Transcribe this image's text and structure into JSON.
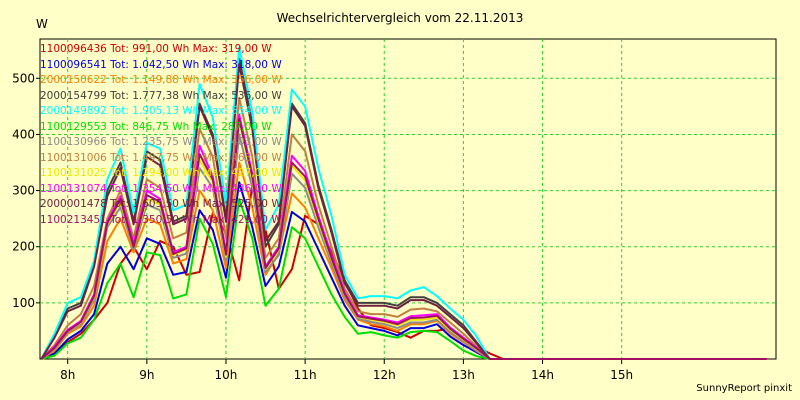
{
  "chart_data": {
    "type": "line",
    "title": "Wechselrichtervergleich vom 22.11.2013",
    "ylabel": "W",
    "footer": "SunnyReport pinxit",
    "xlim": [
      7.65,
      16.95
    ],
    "ylim": [
      0,
      570
    ],
    "x_ticks": [
      {
        "x": 8,
        "label": "8h"
      },
      {
        "x": 9,
        "label": "9h"
      },
      {
        "x": 10,
        "label": "10h"
      },
      {
        "x": 11,
        "label": "11h"
      },
      {
        "x": 12,
        "label": "12h"
      },
      {
        "x": 13,
        "label": "13h"
      },
      {
        "x": 14,
        "label": "14h"
      },
      {
        "x": 15,
        "label": "15h"
      }
    ],
    "y_ticks": [
      100,
      200,
      300,
      400,
      500
    ],
    "grid": true,
    "x": [
      7.667,
      7.833,
      8.0,
      8.167,
      8.333,
      8.5,
      8.667,
      8.833,
      9.0,
      9.167,
      9.333,
      9.5,
      9.667,
      9.833,
      10.0,
      10.167,
      10.333,
      10.5,
      10.667,
      10.833,
      11.0,
      11.167,
      11.333,
      11.5,
      11.667,
      11.833,
      12.0,
      12.167,
      12.333,
      12.5,
      12.667,
      12.833,
      13.0,
      13.167,
      13.333,
      13.5,
      13.667,
      13.833,
      14.0,
      14.167,
      14.333,
      14.5,
      14.667,
      14.833,
      15.0,
      15.167,
      15.333,
      15.5,
      15.667,
      15.833,
      16.0,
      16.167,
      16.333,
      16.5,
      16.667,
      16.833
    ],
    "series": [
      {
        "name": "1100096436",
        "tot": "991,00",
        "max": "319,00",
        "color": "#CC0000",
        "values": [
          0,
          8,
          30,
          45,
          70,
          100,
          170,
          200,
          160,
          210,
          200,
          150,
          155,
          260,
          225,
          140,
          310,
          230,
          125,
          160,
          255,
          240,
          190,
          140,
          90,
          60,
          55,
          48,
          38,
          50,
          50,
          55,
          35,
          22,
          10,
          0,
          0,
          0,
          0,
          0,
          0,
          0,
          0,
          0,
          0,
          0,
          0,
          0,
          0,
          0,
          0,
          0,
          0,
          0,
          0,
          0
        ]
      },
      {
        "name": "1100096541",
        "tot": "1.042,50",
        "max": "318,00",
        "color": "#0000DD",
        "values": [
          0,
          10,
          35,
          50,
          80,
          170,
          200,
          160,
          215,
          205,
          150,
          155,
          265,
          230,
          145,
          315,
          235,
          130,
          165,
          262,
          245,
          195,
          145,
          95,
          60,
          55,
          50,
          42,
          55,
          55,
          62,
          40,
          25,
          12,
          0,
          0,
          0,
          0,
          0,
          0,
          0,
          0,
          0,
          0,
          0,
          0,
          0,
          0,
          0,
          0,
          0,
          0,
          0,
          0,
          0,
          0
        ]
      },
      {
        "name": "2000150622",
        "tot": "1.149,88",
        "max": "356,00",
        "color": "#FF8000",
        "values": [
          0,
          15,
          45,
          58,
          95,
          210,
          250,
          190,
          250,
          240,
          170,
          178,
          300,
          265,
          162,
          350,
          270,
          150,
          188,
          295,
          270,
          215,
          162,
          105,
          70,
          62,
          58,
          50,
          62,
          62,
          68,
          45,
          30,
          14,
          0,
          0,
          0,
          0,
          0,
          0,
          0,
          0,
          0,
          0,
          0,
          0,
          0,
          0,
          0,
          0,
          0,
          0,
          0,
          0,
          0,
          0
        ]
      },
      {
        "name": "2000154799",
        "tot": "1.777,38",
        "max": "536,00",
        "color": "#404040",
        "values": [
          0,
          40,
          90,
          100,
          170,
          300,
          350,
          245,
          370,
          355,
          245,
          255,
          455,
          400,
          250,
          535,
          420,
          200,
          240,
          455,
          420,
          310,
          230,
          140,
          100,
          100,
          100,
          95,
          110,
          110,
          100,
          80,
          60,
          30,
          0,
          0,
          0,
          0,
          0,
          0,
          0,
          0,
          0,
          0,
          0,
          0,
          0,
          0,
          0,
          0,
          0,
          0,
          0,
          0,
          0,
          0
        ]
      },
      {
        "name": "2000149892",
        "tot": "1.905,13",
        "max": "554,00",
        "color": "#00FFFF",
        "values": [
          0,
          45,
          100,
          110,
          175,
          320,
          375,
          260,
          385,
          375,
          265,
          275,
          490,
          430,
          275,
          555,
          440,
          230,
          275,
          480,
          450,
          340,
          255,
          150,
          108,
          112,
          112,
          108,
          122,
          128,
          112,
          90,
          70,
          40,
          0,
          0,
          0,
          0,
          0,
          0,
          0,
          0,
          0,
          0,
          0,
          0,
          0,
          0,
          0,
          0,
          0,
          0,
          0,
          0,
          0,
          0
        ]
      },
      {
        "name": "1100129553",
        "tot": "846,75",
        "max": "287,00",
        "color": "#00DD00",
        "values": [
          0,
          6,
          28,
          38,
          70,
          135,
          170,
          110,
          190,
          185,
          108,
          115,
          250,
          205,
          110,
          285,
          215,
          95,
          125,
          235,
          215,
          165,
          115,
          75,
          45,
          48,
          42,
          38,
          48,
          50,
          48,
          32,
          15,
          5,
          0,
          0,
          0,
          0,
          0,
          0,
          0,
          0,
          0,
          0,
          0,
          0,
          0,
          0,
          0,
          0,
          0,
          0,
          0,
          0,
          0,
          0
        ]
      },
      {
        "name": "1100130966",
        "tot": "1.235,75",
        "max": "403,00",
        "color": "#8C8C8C",
        "values": [
          0,
          18,
          48,
          62,
          105,
          235,
          270,
          195,
          275,
          265,
          180,
          188,
          340,
          305,
          175,
          400,
          305,
          155,
          185,
          330,
          305,
          235,
          170,
          110,
          72,
          66,
          62,
          55,
          65,
          65,
          70,
          48,
          32,
          15,
          0,
          0,
          0,
          0,
          0,
          0,
          0,
          0,
          0,
          0,
          0,
          0,
          0,
          0,
          0,
          0,
          0,
          0,
          0,
          0,
          0,
          0
        ]
      },
      {
        "name": "1100131006",
        "tot": "1.497,75",
        "max": "463,00",
        "color": "#C08040",
        "values": [
          0,
          25,
          60,
          80,
          130,
          250,
          300,
          215,
          320,
          305,
          215,
          225,
          410,
          360,
          215,
          465,
          360,
          180,
          215,
          400,
          370,
          275,
          200,
          125,
          85,
          80,
          80,
          75,
          88,
          90,
          85,
          65,
          45,
          22,
          0,
          0,
          0,
          0,
          0,
          0,
          0,
          0,
          0,
          0,
          0,
          0,
          0,
          0,
          0,
          0,
          0,
          0,
          0,
          0,
          0,
          0
        ]
      },
      {
        "name": "1100131025",
        "tot": "1.294,00",
        "max": "427,00",
        "color": "#E8E800",
        "values": [
          0,
          20,
          50,
          65,
          110,
          240,
          280,
          200,
          285,
          275,
          185,
          195,
          355,
          315,
          182,
          425,
          320,
          160,
          195,
          345,
          318,
          245,
          178,
          115,
          75,
          70,
          66,
          60,
          70,
          70,
          74,
          52,
          35,
          18,
          0,
          0,
          0,
          0,
          0,
          0,
          0,
          0,
          0,
          0,
          0,
          0,
          0,
          0,
          0,
          0,
          0,
          0,
          0,
          0,
          0,
          0
        ]
      },
      {
        "name": "1100131074",
        "tot": "1.354,50",
        "max": "436,00",
        "color": "#FF00FF",
        "values": [
          0,
          22,
          52,
          68,
          115,
          245,
          290,
          205,
          300,
          285,
          190,
          200,
          380,
          325,
          190,
          435,
          330,
          165,
          200,
          362,
          335,
          255,
          185,
          118,
          78,
          74,
          70,
          65,
          76,
          78,
          80,
          56,
          38,
          20,
          0,
          0,
          0,
          0,
          0,
          0,
          0,
          0,
          0,
          0,
          0,
          0,
          0,
          0,
          0,
          0,
          0,
          0,
          0,
          0,
          0,
          0
        ]
      },
      {
        "name": "2000001478",
        "tot": "1.605,50",
        "max": "525,00",
        "color": "#702040",
        "values": [
          0,
          38,
          85,
          95,
          165,
          290,
          340,
          240,
          360,
          345,
          240,
          250,
          450,
          395,
          245,
          525,
          410,
          210,
          245,
          450,
          415,
          305,
          225,
          135,
          95,
          95,
          95,
          90,
          105,
          105,
          95,
          75,
          55,
          28,
          0,
          0,
          0,
          0,
          0,
          0,
          0,
          0,
          0,
          0,
          0,
          0,
          0,
          0,
          0,
          0,
          0,
          0,
          0,
          0,
          0,
          0
        ]
      },
      {
        "name": "1100213451",
        "tot": "1.350,50",
        "max": "429,00",
        "color": "#A01060",
        "values": [
          0,
          20,
          50,
          66,
          112,
          242,
          285,
          200,
          292,
          280,
          187,
          197,
          365,
          320,
          186,
          428,
          325,
          162,
          197,
          350,
          325,
          250,
          180,
          116,
          76,
          72,
          68,
          62,
          73,
          74,
          77,
          54,
          36,
          19,
          0,
          0,
          0,
          0,
          0,
          0,
          0,
          0,
          0,
          0,
          0,
          0,
          0,
          0,
          0,
          0,
          0,
          0,
          0,
          0,
          0,
          0
        ]
      }
    ]
  }
}
